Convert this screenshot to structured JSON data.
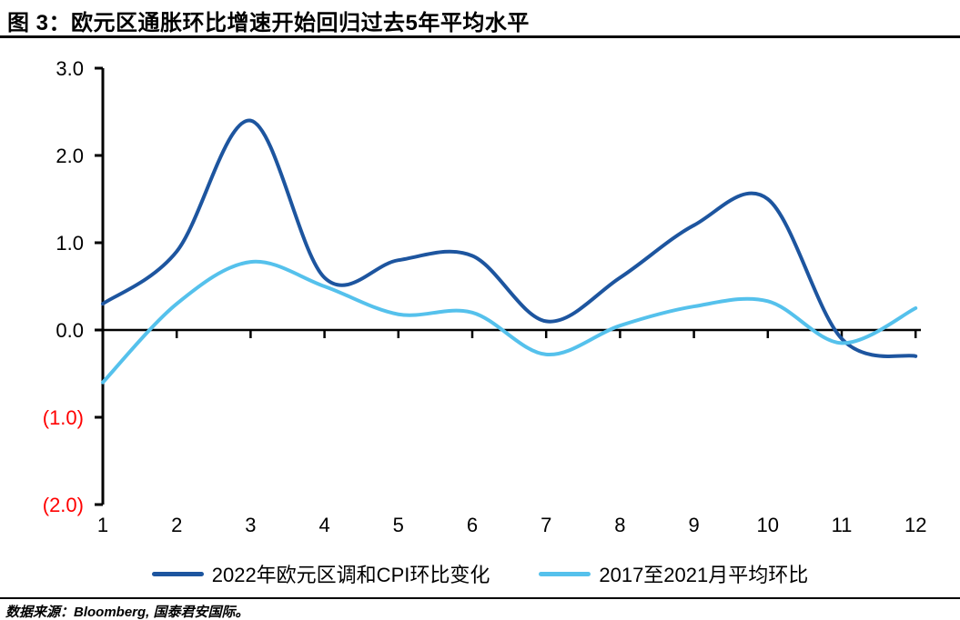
{
  "header": {
    "title": "图 3：欧元区通胀环比增速开始回归过去5年平均水平"
  },
  "chart_data": {
    "type": "line",
    "title": "图 3：欧元区通胀环比增速开始回归过去5年平均水平",
    "xlabel": "",
    "ylabel": "",
    "x": [
      1,
      2,
      3,
      4,
      5,
      6,
      7,
      8,
      9,
      10,
      11,
      12
    ],
    "ylim": [
      -2.0,
      3.0
    ],
    "yticks": [
      {
        "value": 3,
        "label": "3.0"
      },
      {
        "value": 2,
        "label": "2.0"
      },
      {
        "value": 1,
        "label": "1.0"
      },
      {
        "value": 0,
        "label": "0.0"
      },
      {
        "value": -1,
        "label": "(1.0)"
      },
      {
        "value": -2,
        "label": "(2.0)"
      }
    ],
    "grid": false,
    "smooth": true,
    "legend_position": "bottom",
    "axis_color": "#000000",
    "tick_label_color": "#000000",
    "negative_tick_label_color": "#FF0000",
    "series": [
      {
        "name": "2022年欧元区调和CPI环比变化",
        "color": "#1D559F",
        "values": [
          0.3,
          0.9,
          2.4,
          0.6,
          0.8,
          0.85,
          0.1,
          0.6,
          1.2,
          1.5,
          -0.1,
          -0.3
        ]
      },
      {
        "name": "2017至2021月平均环比",
        "color": "#55C1EC",
        "values": [
          -0.6,
          0.3,
          0.78,
          0.5,
          0.18,
          0.2,
          -0.28,
          0.05,
          0.27,
          0.33,
          -0.15,
          0.25
        ]
      }
    ]
  },
  "footer": {
    "source": "数据来源：Bloomberg, 国泰君安国际。"
  }
}
